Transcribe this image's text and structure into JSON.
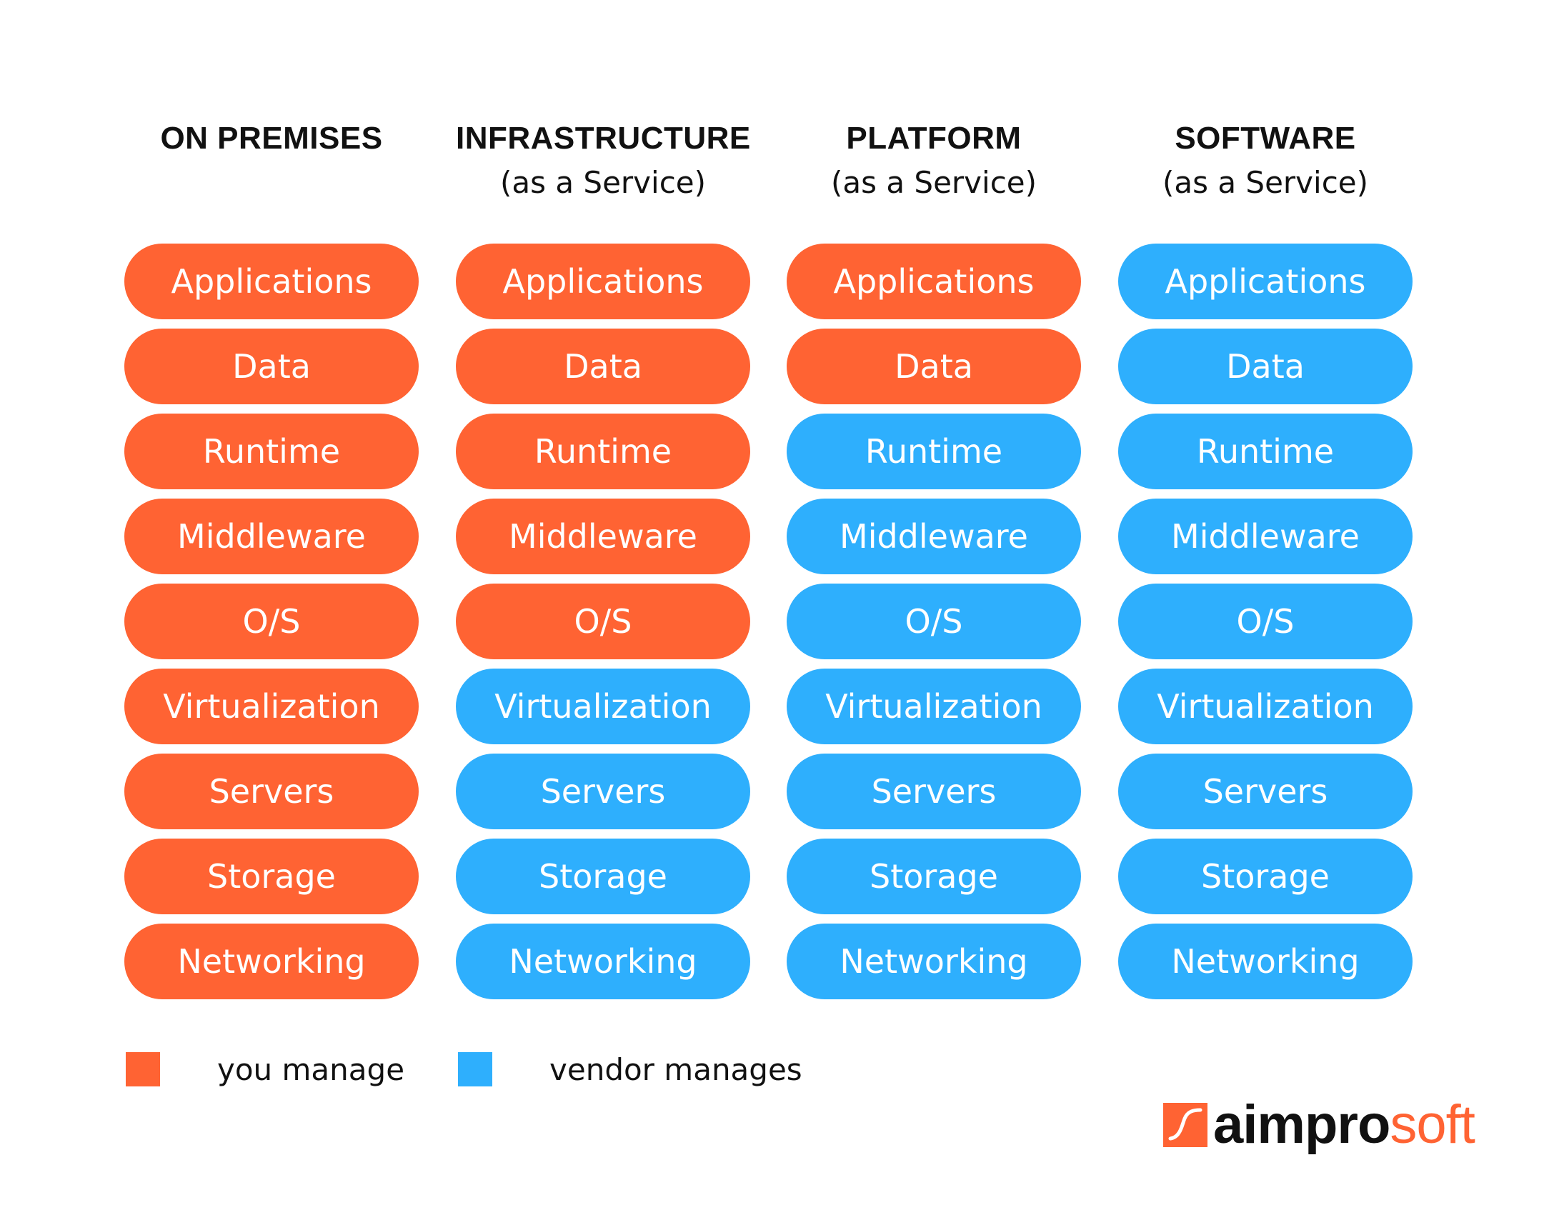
{
  "columns": [
    {
      "title": "ON PREMISES",
      "subtitle": "",
      "layers": [
        {
          "label": "Applications",
          "managed_by": "you"
        },
        {
          "label": "Data",
          "managed_by": "you"
        },
        {
          "label": "Runtime",
          "managed_by": "you"
        },
        {
          "label": "Middleware",
          "managed_by": "you"
        },
        {
          "label": "O/S",
          "managed_by": "you"
        },
        {
          "label": "Virtualization",
          "managed_by": "you"
        },
        {
          "label": "Servers",
          "managed_by": "you"
        },
        {
          "label": "Storage",
          "managed_by": "you"
        },
        {
          "label": "Networking",
          "managed_by": "you"
        }
      ]
    },
    {
      "title": "INFRASTRUCTURE",
      "subtitle": "(as a Service)",
      "layers": [
        {
          "label": "Applications",
          "managed_by": "you"
        },
        {
          "label": "Data",
          "managed_by": "you"
        },
        {
          "label": "Runtime",
          "managed_by": "you"
        },
        {
          "label": "Middleware",
          "managed_by": "you"
        },
        {
          "label": "O/S",
          "managed_by": "you"
        },
        {
          "label": "Virtualization",
          "managed_by": "vendor"
        },
        {
          "label": "Servers",
          "managed_by": "vendor"
        },
        {
          "label": "Storage",
          "managed_by": "vendor"
        },
        {
          "label": "Networking",
          "managed_by": "vendor"
        }
      ]
    },
    {
      "title": "PLATFORM",
      "subtitle": "(as a Service)",
      "layers": [
        {
          "label": "Applications",
          "managed_by": "you"
        },
        {
          "label": "Data",
          "managed_by": "you"
        },
        {
          "label": "Runtime",
          "managed_by": "vendor"
        },
        {
          "label": "Middleware",
          "managed_by": "vendor"
        },
        {
          "label": "O/S",
          "managed_by": "vendor"
        },
        {
          "label": "Virtualization",
          "managed_by": "vendor"
        },
        {
          "label": "Servers",
          "managed_by": "vendor"
        },
        {
          "label": "Storage",
          "managed_by": "vendor"
        },
        {
          "label": "Networking",
          "managed_by": "vendor"
        }
      ]
    },
    {
      "title": "SOFTWARE",
      "subtitle": "(as a Service)",
      "layers": [
        {
          "label": "Applications",
          "managed_by": "vendor"
        },
        {
          "label": "Data",
          "managed_by": "vendor"
        },
        {
          "label": "Runtime",
          "managed_by": "vendor"
        },
        {
          "label": "Middleware",
          "managed_by": "vendor"
        },
        {
          "label": "O/S",
          "managed_by": "vendor"
        },
        {
          "label": "Virtualization",
          "managed_by": "vendor"
        },
        {
          "label": "Servers",
          "managed_by": "vendor"
        },
        {
          "label": "Storage",
          "managed_by": "vendor"
        },
        {
          "label": "Networking",
          "managed_by": "vendor"
        }
      ]
    }
  ],
  "legend": {
    "you": {
      "label": "you manage",
      "color": "#ff6333"
    },
    "vendor": {
      "label": "vendor manages",
      "color": "#2eaffd"
    }
  },
  "logo": {
    "text_dark": "aimpro",
    "text_accent": "soft",
    "mark_color": "#ff6333",
    "text_color": "#111111",
    "accent_color": "#ff6333"
  }
}
